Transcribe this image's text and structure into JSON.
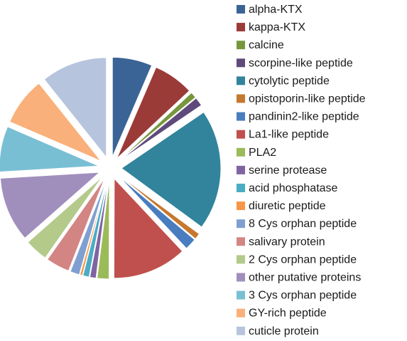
{
  "chart_data": {
    "type": "pie",
    "exploded": true,
    "legend_placement": "right",
    "categories": [
      "alpha-KTX",
      "kappa-KTX",
      "calcine",
      "scorpine-like peptide",
      "cytolytic peptide",
      "opistoporin-like peptide",
      "pandinin2-like peptide",
      "La1-like peptide",
      "PLA2",
      "serine protease",
      "acid phosphatase",
      "diuretic peptide",
      "8 Cys orphan peptide",
      "salivary protein",
      "2 Cys orphan peptide",
      "other putative proteins",
      "3 Cys orphan peptide",
      "GY-rich peptide",
      "cuticle protein"
    ],
    "values": [
      6.4,
      6.5,
      1.0,
      1.4,
      19.3,
      1.0,
      1.9,
      11.9,
      1.9,
      1.0,
      1.0,
      0.4,
      1.5,
      3.8,
      3.7,
      10.4,
      7.3,
      7.7,
      10.6
    ],
    "colors": [
      "#3b6496",
      "#9b3b38",
      "#77973d",
      "#5f4a7b",
      "#31849b",
      "#c5782f",
      "#4a7dbf",
      "#c0504d",
      "#9bbb59",
      "#8064a2",
      "#4bacc6",
      "#f79646",
      "#7f9fd0",
      "#d38583",
      "#b3ca8b",
      "#a08fbd",
      "#79bfd4",
      "#fab07a",
      "#b7c4dd"
    ]
  }
}
